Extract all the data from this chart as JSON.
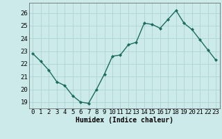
{
  "x": [
    0,
    1,
    2,
    3,
    4,
    5,
    6,
    7,
    8,
    9,
    10,
    11,
    12,
    13,
    14,
    15,
    16,
    17,
    18,
    19,
    20,
    21,
    22,
    23
  ],
  "y": [
    22.8,
    22.2,
    21.5,
    20.6,
    20.3,
    19.5,
    19.0,
    18.9,
    20.0,
    21.2,
    22.6,
    22.7,
    23.5,
    23.7,
    25.2,
    25.1,
    24.8,
    25.5,
    26.2,
    25.2,
    24.7,
    23.9,
    23.1,
    22.3
  ],
  "line_color": "#1a6b5e",
  "marker": "D",
  "markersize": 2.2,
  "linewidth": 1.0,
  "background_color": "#cceaea",
  "grid_color": "#add4d4",
  "xlabel": "Humidex (Indice chaleur)",
  "xlim": [
    -0.5,
    23.5
  ],
  "ylim": [
    18.5,
    26.8
  ],
  "yticks": [
    19,
    20,
    21,
    22,
    23,
    24,
    25,
    26
  ],
  "xticks": [
    0,
    1,
    2,
    3,
    4,
    5,
    6,
    7,
    8,
    9,
    10,
    11,
    12,
    13,
    14,
    15,
    16,
    17,
    18,
    19,
    20,
    21,
    22,
    23
  ],
  "xlabel_fontsize": 7.0,
  "tick_fontsize": 6.5
}
